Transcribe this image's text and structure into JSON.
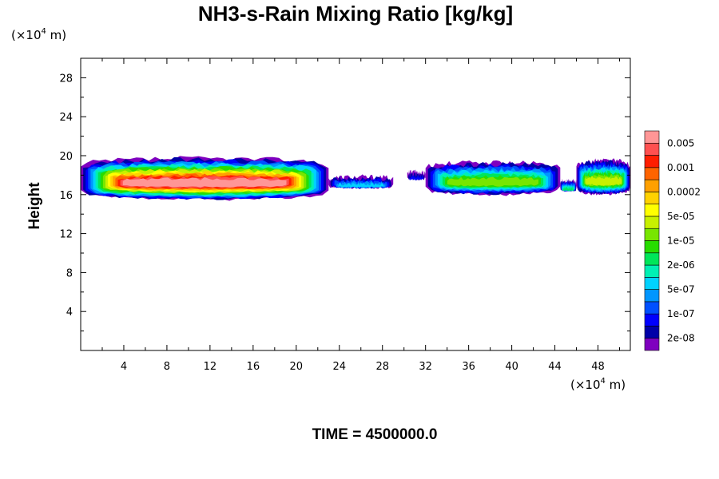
{
  "chart_data": {
    "type": "heatmap",
    "title": "NH3-s-Rain Mixing Ratio [kg/kg]",
    "ylabel": "Height",
    "xlabel": "",
    "x_unit": {
      "prefix": "(×10",
      "exp": "4",
      "suffix": " m)"
    },
    "y_unit": {
      "prefix": "(×10",
      "exp": "4",
      "suffix": " m)"
    },
    "xlim": [
      0,
      51
    ],
    "ylim": [
      0,
      30
    ],
    "x_ticks": [
      4,
      8,
      12,
      16,
      20,
      24,
      28,
      32,
      36,
      40,
      44,
      48
    ],
    "y_ticks": [
      4,
      8,
      12,
      16,
      20,
      24,
      28
    ],
    "time_label": "TIME = 4500000.0",
    "colorbar": {
      "colors": [
        "#7f00bf",
        "#0000a8",
        "#0000ff",
        "#0050ff",
        "#0096ff",
        "#00d2ff",
        "#00f0b4",
        "#00e65a",
        "#28dc00",
        "#78e600",
        "#c8f000",
        "#ffff00",
        "#ffd200",
        "#ffa000",
        "#ff6400",
        "#ff1e00",
        "#ff5050",
        "#ff9696"
      ],
      "labels": [
        "2e-08",
        "1e-07",
        "5e-07",
        "2e-06",
        "1e-05",
        "5e-05",
        "0.0002",
        "0.001",
        "0.005"
      ]
    },
    "cloud_bands": [
      {
        "x_start": 0.0,
        "x_end": 23.0,
        "y_bottom": 15.5,
        "y_top": 19.7,
        "peak_level": 17
      },
      {
        "x_start": 23.0,
        "x_end": 29.0,
        "y_bottom": 16.7,
        "y_top": 17.8,
        "peak_level": 5
      },
      {
        "x_start": 30.3,
        "x_end": 32.0,
        "y_bottom": 17.6,
        "y_top": 18.3,
        "peak_level": 2
      },
      {
        "x_start": 32.0,
        "x_end": 44.5,
        "y_bottom": 16.0,
        "y_top": 19.3,
        "peak_level": 9
      },
      {
        "x_start": 44.5,
        "x_end": 46.0,
        "y_bottom": 16.4,
        "y_top": 17.4,
        "peak_level": 7
      },
      {
        "x_start": 46.0,
        "x_end": 51.0,
        "y_bottom": 16.0,
        "y_top": 19.5,
        "peak_level": 10
      }
    ]
  }
}
